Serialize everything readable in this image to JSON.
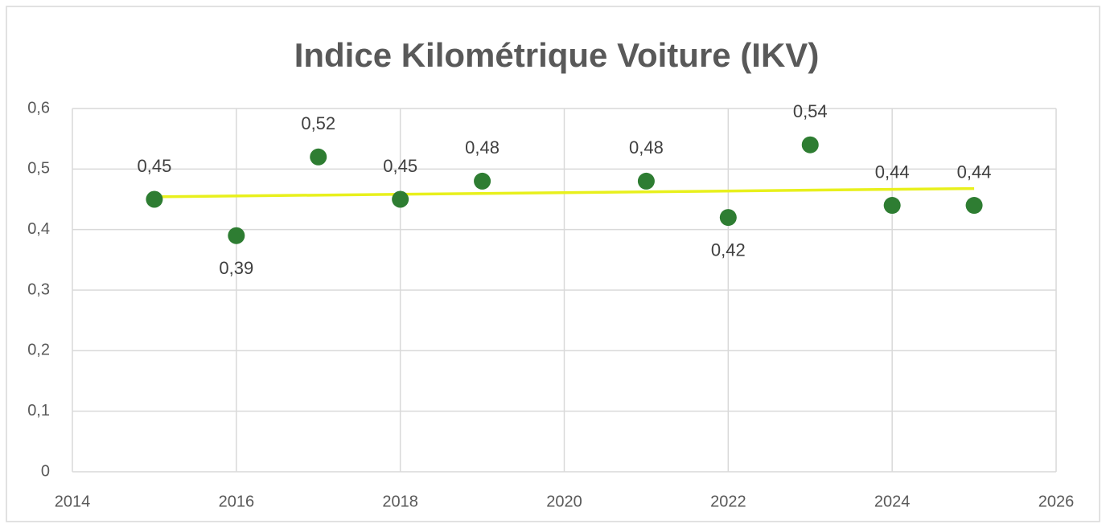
{
  "chart_data": {
    "type": "scatter",
    "title": "Indice Kilométrique Voiture (IKV)",
    "x": [
      2015,
      2016,
      2017,
      2018,
      2019,
      2021,
      2022,
      2023,
      2024,
      2025
    ],
    "values": [
      0.45,
      0.39,
      0.52,
      0.45,
      0.48,
      0.48,
      0.42,
      0.54,
      0.44,
      0.44
    ],
    "value_labels": [
      "0,45",
      "0,39",
      "0,52",
      "0,45",
      "0,48",
      "0,48",
      "0,42",
      "0,54",
      "0,44",
      "0,44"
    ],
    "color": "#2e7d32",
    "trendline_color": "#e8f01c",
    "xlim": [
      2014,
      2026
    ],
    "xticks": [
      2014,
      2016,
      2018,
      2020,
      2022,
      2024,
      2026
    ],
    "ylim": [
      0,
      0.6
    ],
    "yticks": [
      0,
      {
        "value": 0.1,
        "label": "0,1"
      },
      {
        "value": 0.2,
        "label": "0,2"
      },
      {
        "value": 0.3,
        "label": "0,3"
      },
      {
        "value": 0.4,
        "label": "0,4"
      },
      {
        "value": 0.5,
        "label": "0,5"
      },
      {
        "value": 0.6,
        "label": "0,6"
      }
    ],
    "grid": true
  }
}
